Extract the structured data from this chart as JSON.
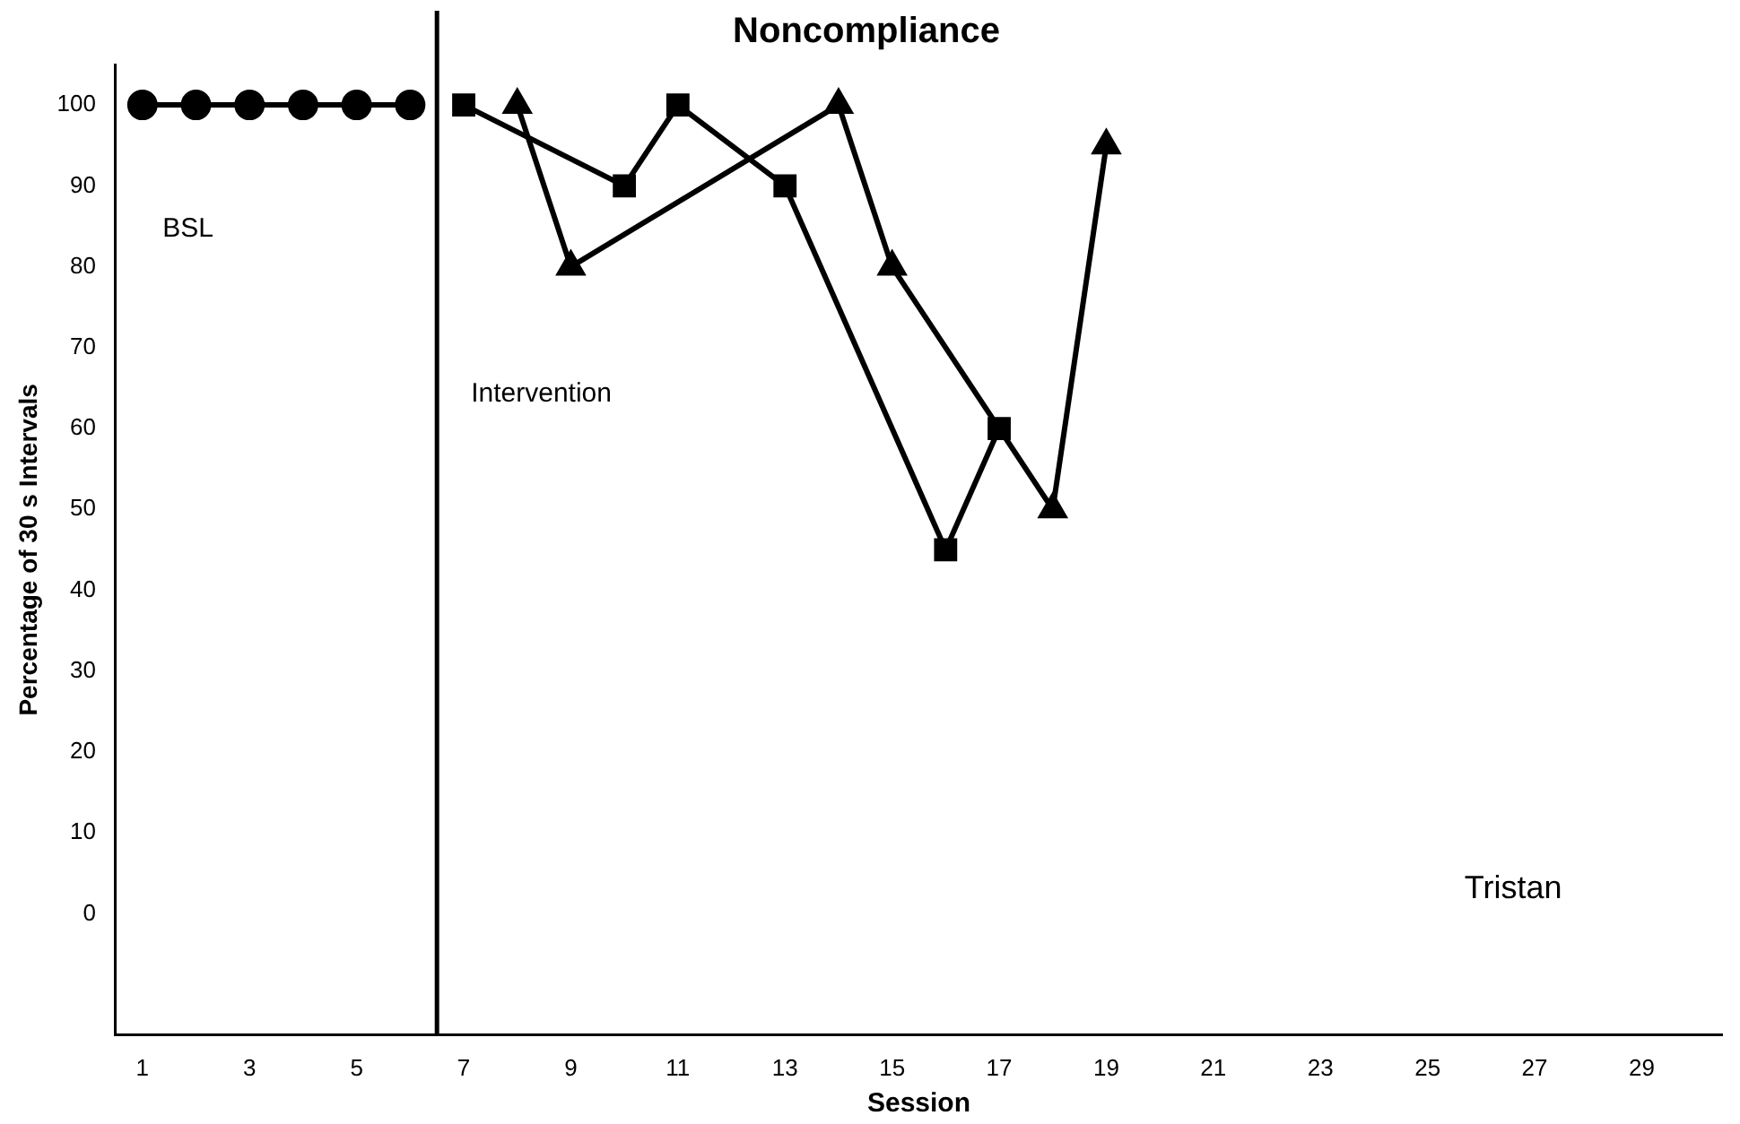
{
  "chart_data": {
    "type": "line",
    "title": "Noncompliance",
    "xlabel": "Session",
    "ylabel": "Percentage of 30 s Intervals",
    "xlim": [
      0.5,
      30.5
    ],
    "xticks": [
      1,
      3,
      5,
      7,
      9,
      11,
      13,
      15,
      17,
      19,
      21,
      23,
      25,
      27,
      29
    ],
    "ylim": [
      -15,
      105
    ],
    "yticks": [
      0,
      10,
      20,
      30,
      40,
      50,
      60,
      70,
      80,
      90,
      100
    ],
    "grid": false,
    "legend": false,
    "line_style": "solid",
    "series": [
      {
        "color": "#000000",
        "marker": "circle",
        "x": [
          1,
          2,
          3,
          4,
          5,
          6
        ],
        "values": [
          100,
          100,
          100,
          100,
          100,
          100
        ]
      },
      {
        "color": "#000000",
        "marker": "square",
        "x": [
          7,
          10,
          11,
          13,
          16,
          17
        ],
        "values": [
          100,
          90,
          100,
          90,
          45,
          60
        ]
      },
      {
        "color": "#000000",
        "marker": "triangle",
        "x": [
          8,
          9,
          14,
          15,
          18,
          19
        ],
        "values": [
          100,
          80,
          100,
          80,
          50,
          95
        ]
      }
    ],
    "ref_lines": [
      {
        "axis": "x",
        "value": 6.5,
        "color": "#000000"
      }
    ],
    "annotations": [
      "BSL",
      "Intervention",
      "Tristan"
    ]
  }
}
